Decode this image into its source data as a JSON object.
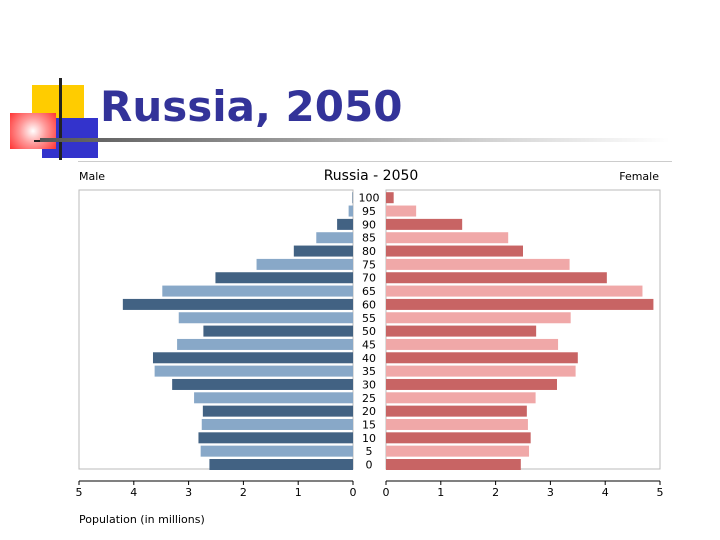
{
  "slide": {
    "title": "Russia, 2050"
  },
  "chart_data": {
    "type": "bar",
    "title": "Russia - 2050",
    "left_label": "Male",
    "right_label": "Female",
    "xlabel": "Population (in millions)",
    "xlim": [
      0,
      5
    ],
    "x_ticks": [
      "5",
      "4",
      "3",
      "2",
      "1",
      "0",
      "0",
      "1",
      "2",
      "3",
      "4",
      "5"
    ],
    "categories": [
      "0",
      "5",
      "10",
      "15",
      "20",
      "25",
      "30",
      "35",
      "40",
      "45",
      "50",
      "55",
      "60",
      "65",
      "70",
      "75",
      "80",
      "85",
      "90",
      "95",
      "100"
    ],
    "series": [
      {
        "name": "Male",
        "values": [
          2.62,
          2.78,
          2.82,
          2.76,
          2.74,
          2.9,
          3.3,
          3.62,
          3.65,
          3.21,
          2.73,
          3.18,
          4.2,
          3.48,
          2.51,
          1.76,
          1.08,
          0.67,
          0.29,
          0.08,
          0.01
        ],
        "colors": [
          "#426283",
          "#88a8c8"
        ]
      },
      {
        "name": "Female",
        "values": [
          2.46,
          2.61,
          2.64,
          2.59,
          2.57,
          2.73,
          3.12,
          3.46,
          3.5,
          3.14,
          2.74,
          3.37,
          4.88,
          4.68,
          4.03,
          3.35,
          2.5,
          2.23,
          1.39,
          0.55,
          0.14
        ],
        "colors": [
          "#c86464",
          "#f0a8a8"
        ]
      }
    ]
  }
}
